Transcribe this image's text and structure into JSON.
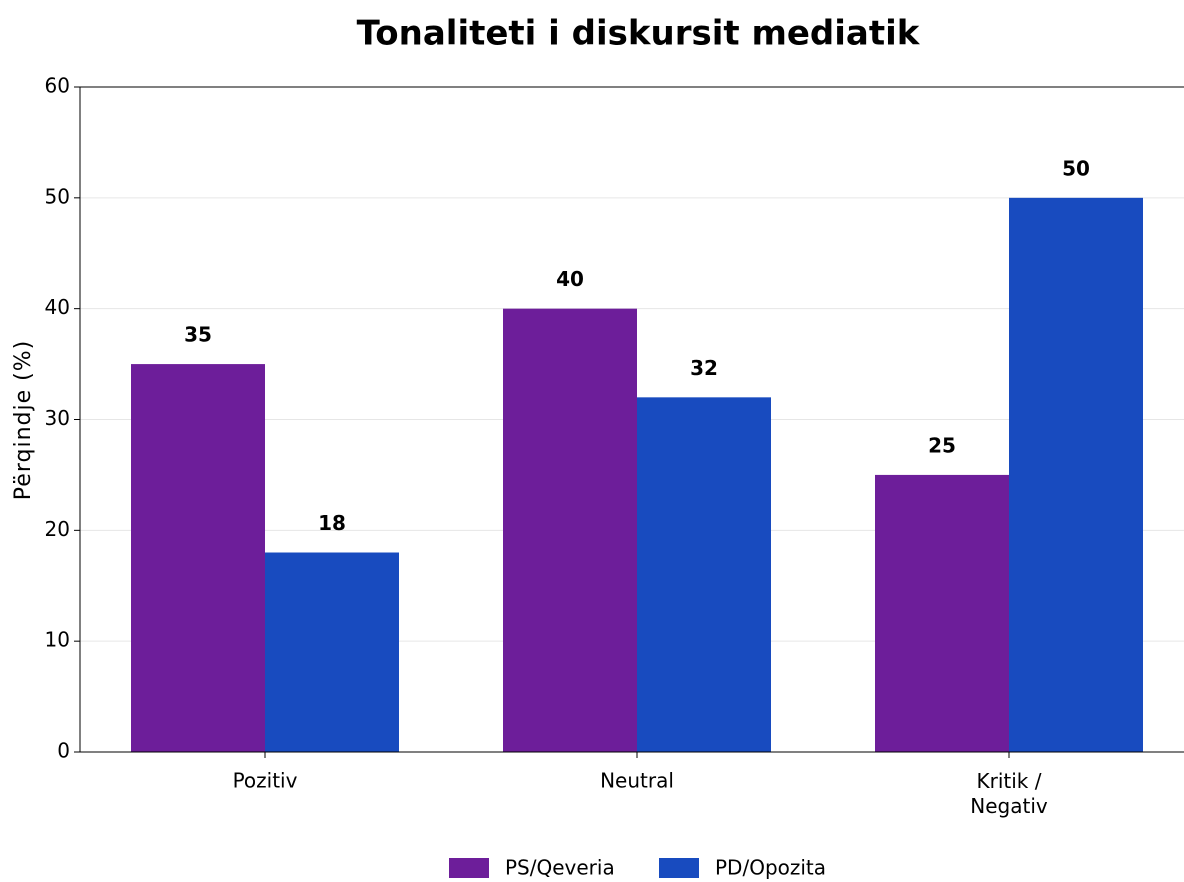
{
  "chart_data": {
    "type": "bar",
    "title": "Tonaliteti i diskursit mediatik",
    "ylabel": "Përqindje (%)",
    "categories": [
      "Pozitiv",
      "Neutral",
      "Kritik /\nNegativ"
    ],
    "series": [
      {
        "name": "PS/Qeveria",
        "color": "#6d1e9a",
        "values": [
          35,
          40,
          25
        ]
      },
      {
        "name": "PD/Opozita",
        "color": "#184bbf",
        "values": [
          18,
          32,
          50
        ]
      }
    ],
    "ylim": [
      0,
      60
    ],
    "yticks": [
      0,
      10,
      20,
      30,
      40,
      50,
      60
    ],
    "grid": true,
    "legend": "bottom"
  }
}
